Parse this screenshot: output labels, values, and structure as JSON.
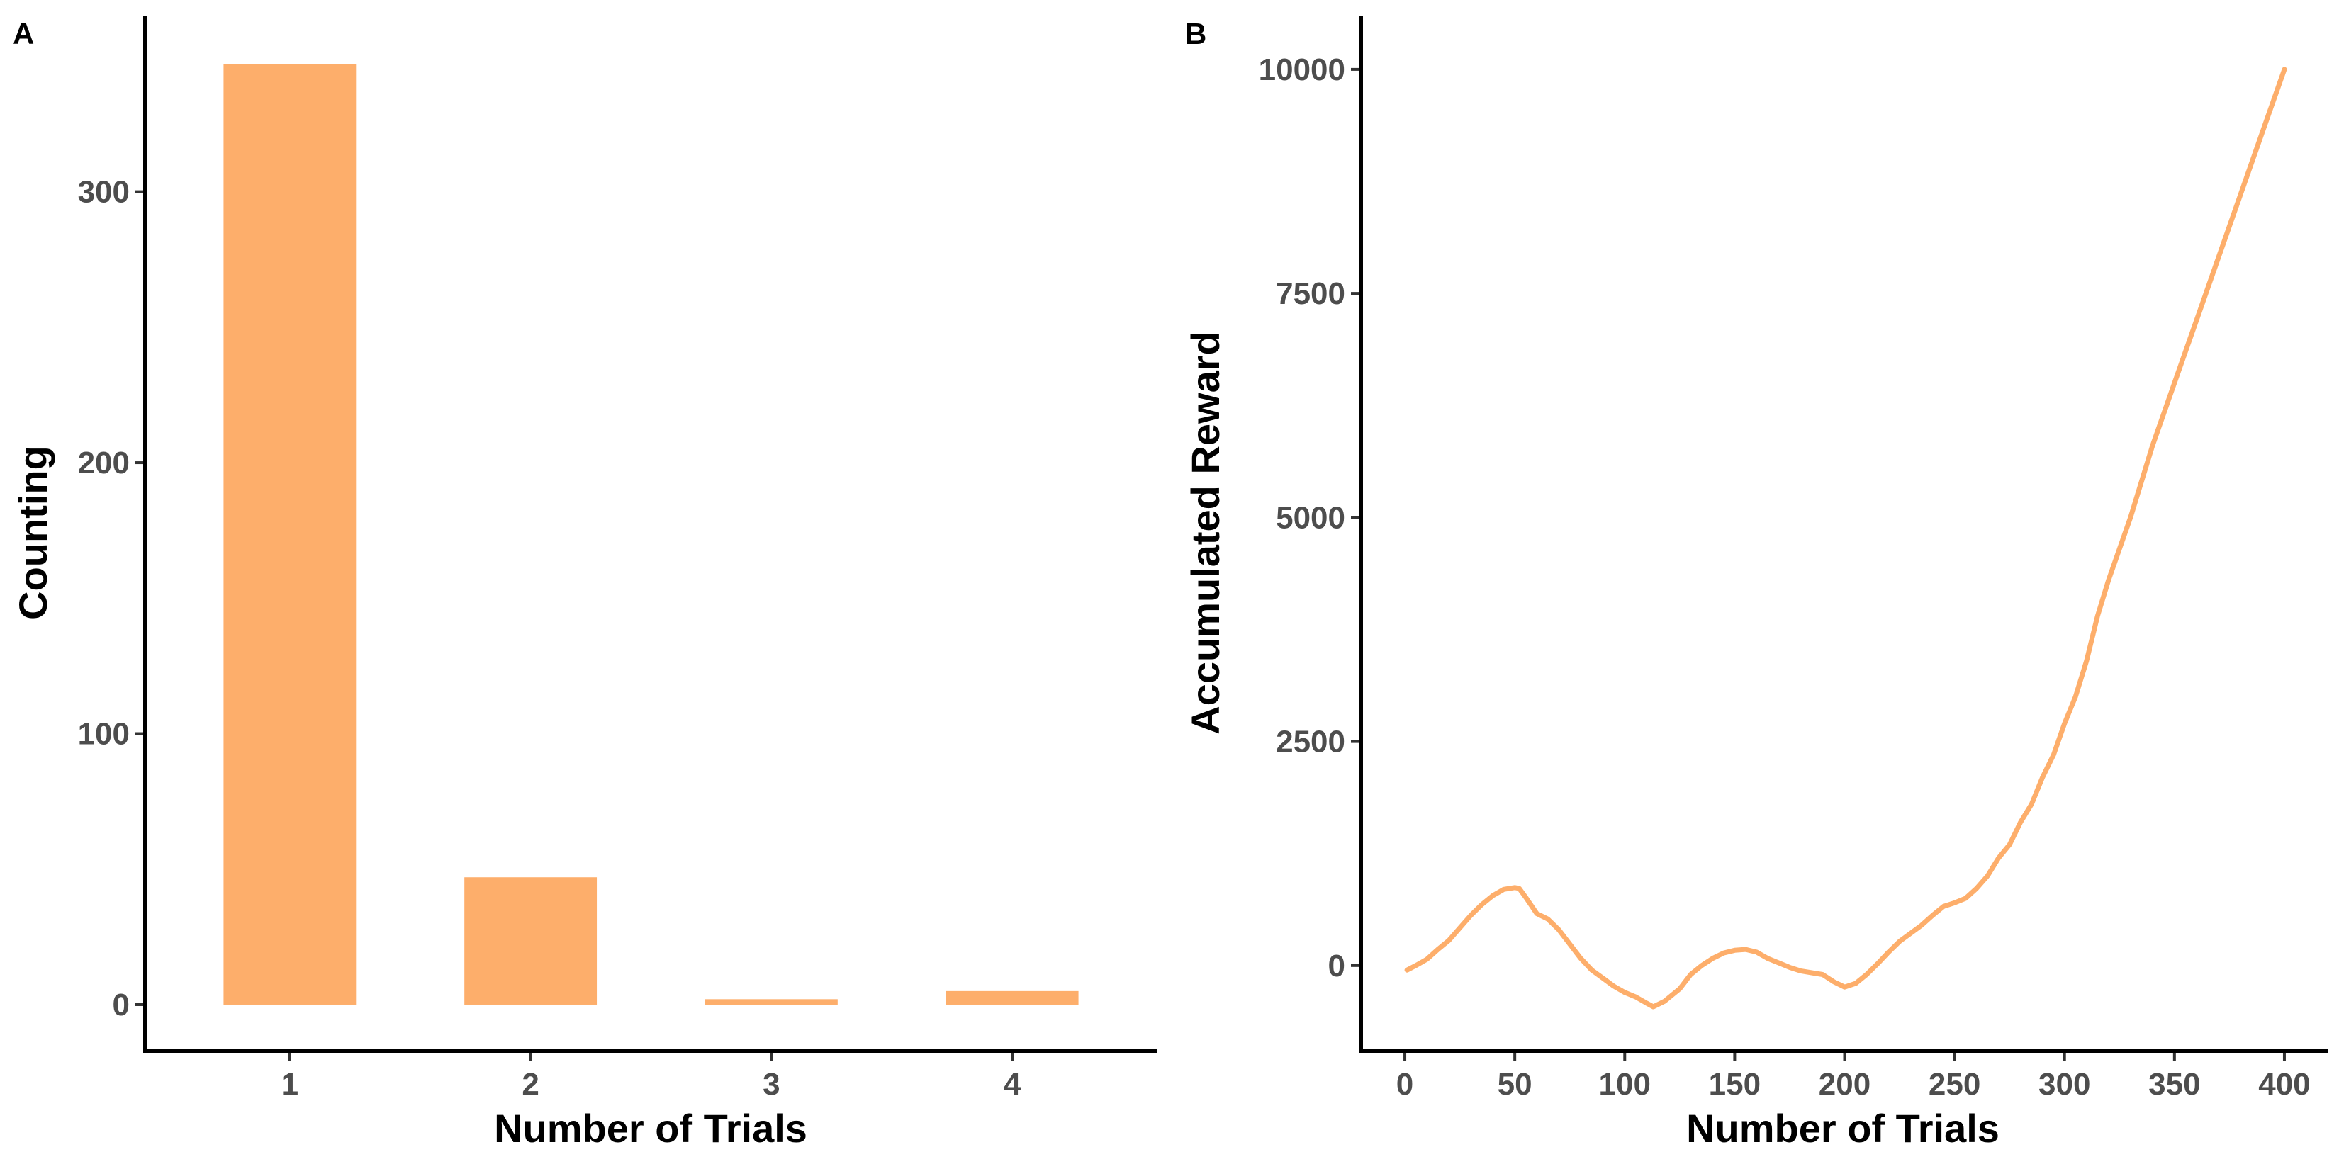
{
  "chart_data": [
    {
      "panel": "A",
      "type": "bar",
      "xlabel": "Number of Trials",
      "ylabel": "Counting",
      "categories": [
        "1",
        "2",
        "3",
        "4"
      ],
      "values": [
        347,
        47,
        2,
        5
      ],
      "ylim": [
        -17,
        365
      ],
      "yticks": [
        0,
        100,
        200,
        300
      ],
      "bar_color": "#FDAE6B",
      "grid": false,
      "legend": "none"
    },
    {
      "panel": "B",
      "type": "line",
      "xlabel": "Number of Trials",
      "ylabel": "Accumulated Reward",
      "xlim": [
        -20,
        420
      ],
      "ylim": [
        -950,
        10600
      ],
      "xticks": [
        0,
        50,
        100,
        150,
        200,
        250,
        300,
        350,
        400
      ],
      "yticks": [
        0,
        2500,
        5000,
        7500,
        10000
      ],
      "line_color": "#FDAE6B",
      "grid": false,
      "legend": "none",
      "x": [
        1,
        5,
        10,
        15,
        20,
        25,
        30,
        35,
        40,
        45,
        50,
        52,
        55,
        60,
        65,
        70,
        75,
        80,
        85,
        90,
        95,
        100,
        105,
        110,
        113,
        118,
        125,
        130,
        135,
        140,
        145,
        150,
        155,
        160,
        165,
        170,
        175,
        180,
        185,
        190,
        195,
        200,
        205,
        210,
        215,
        220,
        225,
        230,
        235,
        240,
        245,
        250,
        255,
        260,
        265,
        270,
        275,
        280,
        285,
        290,
        295,
        300,
        305,
        310,
        315,
        320,
        330,
        340,
        350,
        360,
        370,
        380,
        390,
        400
      ],
      "y": [
        -50,
        0,
        70,
        180,
        280,
        420,
        560,
        680,
        780,
        850,
        870,
        860,
        760,
        580,
        520,
        400,
        240,
        80,
        -50,
        -140,
        -230,
        -300,
        -350,
        -420,
        -460,
        -400,
        -260,
        -100,
        0,
        80,
        140,
        170,
        180,
        150,
        80,
        30,
        -20,
        -60,
        -80,
        -100,
        -180,
        -240,
        -200,
        -100,
        20,
        150,
        270,
        360,
        450,
        560,
        660,
        700,
        750,
        860,
        1000,
        1200,
        1350,
        1600,
        1800,
        2100,
        2350,
        2700,
        3000,
        3400,
        3900,
        4300,
        5000,
        5800,
        6500,
        7200,
        7900,
        8600,
        9300,
        10000
      ]
    }
  ]
}
